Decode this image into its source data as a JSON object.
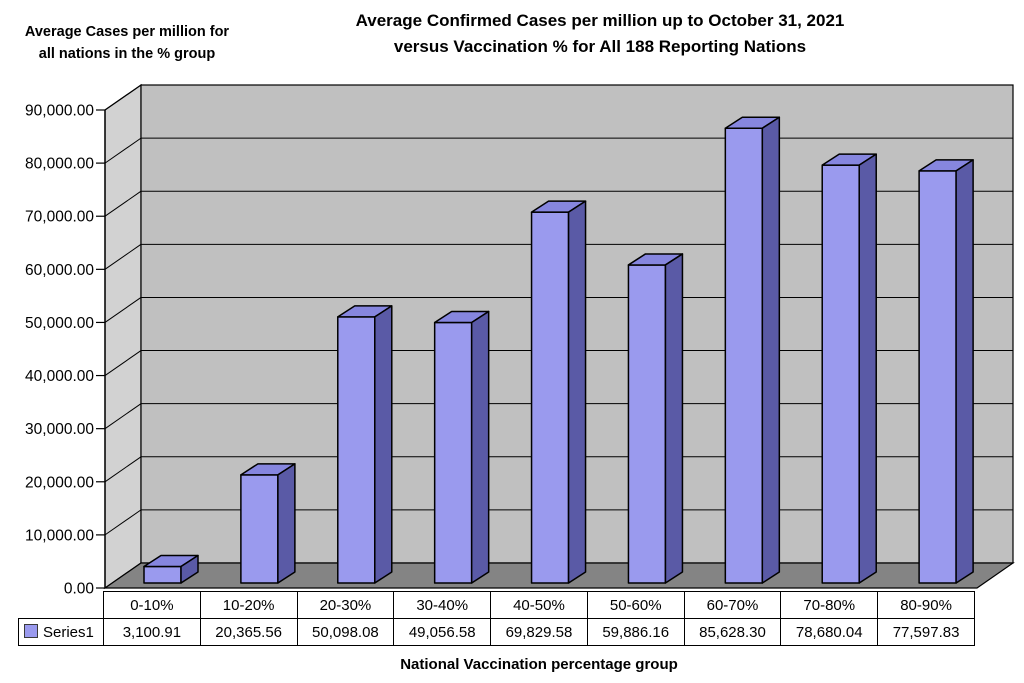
{
  "header": {
    "title_line1": "Average Confirmed Cases per million up to October 31, 2021",
    "title_line2": "versus Vaccination % for All 188 Reporting Nations"
  },
  "y_axis_title": {
    "line1": "Average Cases per million for",
    "line2": "all nations in the % group"
  },
  "x_axis_title": "National Vaccination percentage group",
  "legend": {
    "label": "Series1",
    "swatch_color": "#9A9AEE"
  },
  "chart_data": {
    "type": "bar",
    "style": "3d-column",
    "title": "Average Confirmed Cases per million up to October 31, 2021 versus Vaccination % for All 188 Reporting Nations",
    "xlabel": "National Vaccination percentage group",
    "ylabel": "Average Cases per million for all nations in the % group",
    "categories": [
      "0-10%",
      "10-20%",
      "20-30%",
      "30-40%",
      "40-50%",
      "50-60%",
      "60-70%",
      "70-80%",
      "80-90%"
    ],
    "series": [
      {
        "name": "Series1",
        "values": [
          3100.91,
          20365.56,
          50098.08,
          49056.58,
          69829.58,
          59886.16,
          85628.3,
          78680.04,
          77597.83
        ]
      }
    ],
    "value_labels": [
      "3,100.91",
      "20,365.56",
      "50,098.08",
      "49,056.58",
      "69,829.58",
      "59,886.16",
      "85,628.30",
      "78,680.04",
      "77,597.83"
    ],
    "ylim": [
      0,
      90000
    ],
    "ytick_step": 10000,
    "ytick_labels": [
      "0.00",
      "10,000.00",
      "20,000.00",
      "30,000.00",
      "40,000.00",
      "50,000.00",
      "60,000.00",
      "70,000.00",
      "80,000.00",
      "90,000.00"
    ],
    "grid": true,
    "legend_position": "bottom-table-left",
    "colors": {
      "bar_front": "#9A9AEE",
      "bar_top": "#8686DF",
      "bar_side": "#5A5AA6",
      "back_wall": "#C0C0C0",
      "side_wall": "#D2D2D2",
      "floor": "#848484",
      "outline": "#000000",
      "gridline": "#000000"
    }
  }
}
